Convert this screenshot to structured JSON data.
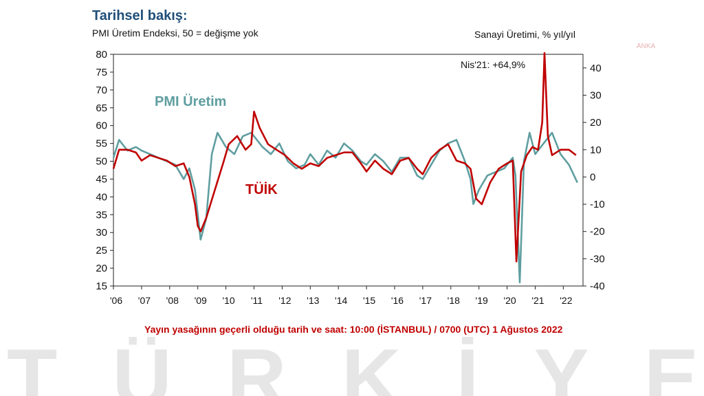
{
  "watermark": "TÜRKİYE",
  "brand": "ANKA",
  "title": "Tarihsel bakış:",
  "subtitle": "PMI Üretim Endeksi, 50 = değişme yok",
  "right_axis_title": "Sanayi Üretimi, % yıl/yıl",
  "footer": "Yayın yasağının geçerli olduğu tarih ve saat: 10:00 (İSTANBUL) / 0700 (UTC) 1 Ağustos 2022",
  "colors": {
    "pmi": "#5f9ea0",
    "tuik": "#c00000",
    "title": "#1f4e79"
  },
  "chart_data": {
    "type": "line",
    "title": "Tarihsel bakış:",
    "xlabel": "",
    "ylabel": "PMI Üretim Endeksi, 50 = değişme yok",
    "y2label": "Sanayi Üretimi, % yıl/yıl",
    "ylim": [
      15,
      80
    ],
    "y2lim": [
      -40,
      45
    ],
    "yticks": [
      "80",
      "75",
      "70",
      "65",
      "60",
      "55",
      "50",
      "45",
      "40",
      "35",
      "30",
      "25",
      "20",
      "15"
    ],
    "y2ticks": [
      "40",
      "30",
      "20",
      "10",
      "0",
      "-10",
      "-20",
      "-30",
      "-40"
    ],
    "xticks": [
      "'06",
      "'07",
      "'08",
      "'09",
      "'10",
      "'11",
      "'12",
      "'13",
      "'14",
      "'15",
      "'16",
      "'17",
      "'18",
      "'19",
      "'20",
      "'21",
      "'22"
    ],
    "annotation": "Nis'21: +64,9%",
    "series": [
      {
        "name": "PMI Üretim",
        "axis": "left",
        "x": [
          2006.0,
          2006.2,
          2006.5,
          2006.8,
          2007.0,
          2007.3,
          2007.6,
          2007.9,
          2008.2,
          2008.5,
          2008.7,
          2008.9,
          2009.0,
          2009.1,
          2009.3,
          2009.5,
          2009.7,
          2010.0,
          2010.3,
          2010.6,
          2010.9,
          2011.0,
          2011.3,
          2011.6,
          2011.9,
          2012.2,
          2012.5,
          2012.8,
          2013.0,
          2013.3,
          2013.6,
          2013.9,
          2014.2,
          2014.5,
          2014.8,
          2015.0,
          2015.3,
          2015.6,
          2015.9,
          2016.2,
          2016.5,
          2016.8,
          2017.0,
          2017.3,
          2017.6,
          2017.9,
          2018.2,
          2018.5,
          2018.7,
          2018.8,
          2019.0,
          2019.3,
          2019.6,
          2019.9,
          2020.0,
          2020.2,
          2020.3,
          2020.45,
          2020.6,
          2020.8,
          2021.0,
          2021.3,
          2021.6,
          2021.9,
          2022.2,
          2022.5
        ],
        "values": [
          51,
          56,
          53,
          54,
          53,
          52,
          51,
          50,
          49,
          45,
          48,
          42,
          35,
          28,
          34,
          52,
          58,
          54,
          52,
          57,
          58,
          57,
          54,
          52,
          55,
          50,
          48,
          49,
          52,
          49,
          53,
          51,
          55,
          53,
          50,
          49,
          52,
          50,
          47,
          51,
          51,
          46,
          45,
          49,
          53,
          55,
          56,
          50,
          45,
          38,
          42,
          46,
          47,
          48,
          49,
          51,
          46,
          16,
          50,
          58,
          52,
          55,
          58,
          52,
          49,
          44
        ]
      },
      {
        "name": "TÜİK",
        "axis": "right",
        "x": [
          2006.0,
          2006.2,
          2006.5,
          2006.8,
          2007.0,
          2007.3,
          2007.6,
          2007.9,
          2008.2,
          2008.5,
          2008.7,
          2008.9,
          2009.0,
          2009.1,
          2009.3,
          2009.6,
          2009.9,
          2010.1,
          2010.4,
          2010.7,
          2010.9,
          2011.0,
          2011.2,
          2011.5,
          2011.8,
          2012.1,
          2012.4,
          2012.7,
          2013.0,
          2013.3,
          2013.6,
          2013.9,
          2014.2,
          2014.5,
          2014.8,
          2015.0,
          2015.3,
          2015.6,
          2015.9,
          2016.2,
          2016.5,
          2016.8,
          2017.0,
          2017.3,
          2017.6,
          2017.9,
          2018.2,
          2018.5,
          2018.7,
          2018.9,
          2019.1,
          2019.4,
          2019.7,
          2020.0,
          2020.2,
          2020.33,
          2020.5,
          2020.7,
          2020.9,
          2021.1,
          2021.25,
          2021.33,
          2021.45,
          2021.6,
          2021.9,
          2022.2,
          2022.45
        ],
        "values": [
          3,
          10,
          10,
          9,
          6,
          8,
          7,
          6,
          4,
          5,
          0,
          -10,
          -18,
          -20,
          -15,
          -5,
          5,
          12,
          15,
          10,
          12,
          24,
          18,
          12,
          10,
          8,
          5,
          3,
          5,
          4,
          7,
          8,
          9,
          9,
          5,
          2,
          6,
          3,
          1,
          6,
          7,
          3,
          1,
          7,
          10,
          12,
          6,
          5,
          3,
          -8,
          -10,
          -2,
          3,
          5,
          6,
          -31,
          2,
          8,
          11,
          10,
          20,
          65,
          15,
          8,
          10,
          10,
          8
        ]
      }
    ]
  }
}
